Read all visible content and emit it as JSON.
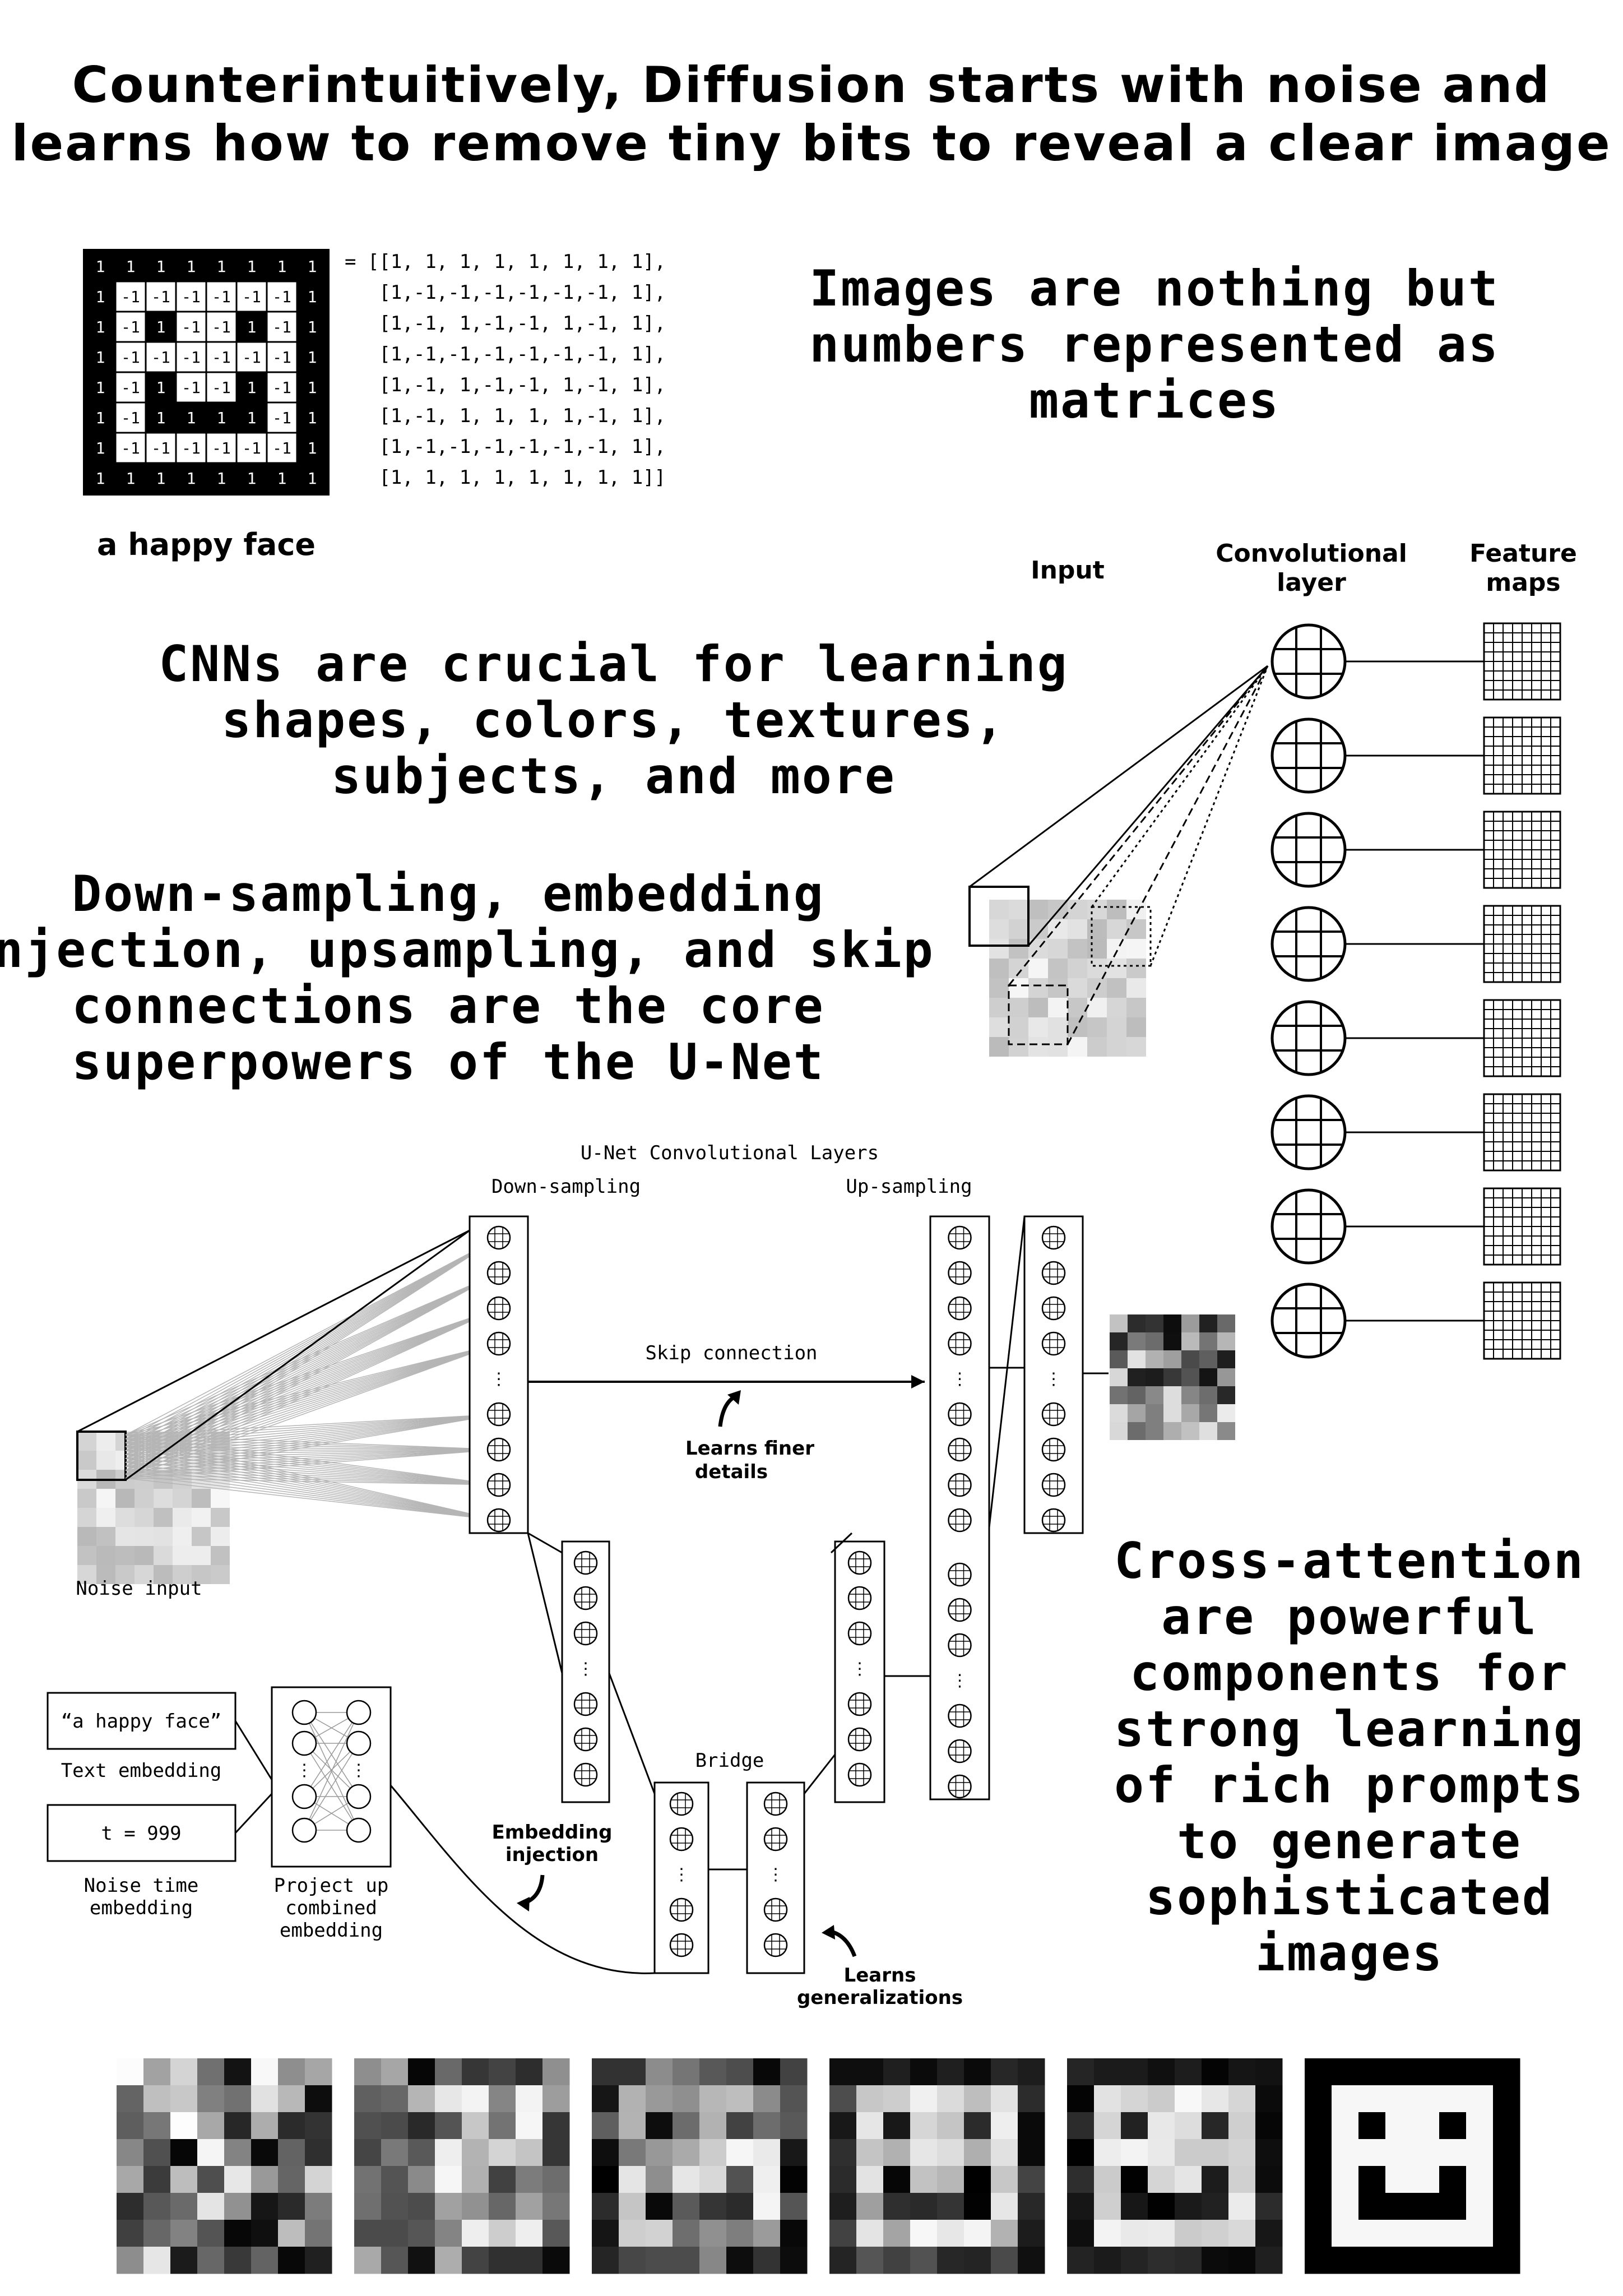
{
  "headline": {
    "line1": "Counterintuitively, Diffusion starts with noise and",
    "line2": "learns how to remove tiny bits to reveal a clear image"
  },
  "happy_face": {
    "caption": "a happy face",
    "matrix": [
      [
        1,
        1,
        1,
        1,
        1,
        1,
        1,
        1
      ],
      [
        1,
        -1,
        -1,
        -1,
        -1,
        -1,
        -1,
        1
      ],
      [
        1,
        -1,
        1,
        -1,
        -1,
        1,
        -1,
        1
      ],
      [
        1,
        -1,
        -1,
        -1,
        -1,
        -1,
        -1,
        1
      ],
      [
        1,
        -1,
        1,
        -1,
        -1,
        1,
        -1,
        1
      ],
      [
        1,
        -1,
        1,
        1,
        1,
        1,
        -1,
        1
      ],
      [
        1,
        -1,
        -1,
        -1,
        -1,
        -1,
        -1,
        1
      ],
      [
        1,
        1,
        1,
        1,
        1,
        1,
        1,
        1
      ]
    ],
    "matrix_text": [
      "= [[1, 1, 1, 1, 1, 1, 1, 1],",
      "   [1,-1,-1,-1,-1,-1,-1, 1],",
      "   [1,-1, 1,-1,-1, 1,-1, 1],",
      "   [1,-1,-1,-1,-1,-1,-1, 1],",
      "   [1,-1, 1,-1,-1, 1,-1, 1],",
      "   [1,-1, 1, 1, 1, 1,-1, 1],",
      "   [1,-1,-1,-1,-1,-1,-1, 1],",
      "   [1, 1, 1, 1, 1, 1, 1, 1]]"
    ]
  },
  "statements": {
    "images_as_numbers": [
      "Images are nothing but",
      "numbers represented as",
      "matrices"
    ],
    "cnns": [
      "CNNs are crucial for learning",
      "shapes, colors, textures,",
      "subjects, and more"
    ],
    "unet": [
      "Down-sampling, embedding",
      "injection, upsampling, and skip",
      "connections are the core",
      "superpowers of the U-Net"
    ],
    "cross_attention": [
      "Cross-attention",
      "are powerful",
      "components for",
      "strong learning",
      "of rich prompts",
      "to generate",
      "sophisticated",
      "images"
    ]
  },
  "cnn_diagram": {
    "input_label": "Input",
    "conv_label": [
      "Convolutional",
      "layer"
    ],
    "feature_label": [
      "Feature",
      "maps"
    ]
  },
  "unet_diagram": {
    "title": "U-Net Convolutional Layers",
    "down_label": "Down-sampling",
    "up_label": "Up-sampling",
    "skip_label": "Skip connection",
    "finer_label": [
      "Learns finer",
      "details"
    ],
    "noise_label": "Noise input",
    "prompt_text": "“a happy face”",
    "text_embedding_label": "Text embedding",
    "timestep_text": "t = 999",
    "noise_time_label": [
      "Noise time",
      "embedding"
    ],
    "project_label": [
      "Project up",
      "combined",
      "embedding"
    ],
    "bridge_label": "Bridge",
    "embedding_injection_label": [
      "Embedding",
      "injection"
    ],
    "generalizations_label": [
      "Learns",
      "generalizations"
    ],
    "ellipsis": "⋮"
  },
  "denoise_strip": {
    "frame_count": 6
  },
  "colors": {
    "ink": "#000000",
    "paper": "#ffffff",
    "rule": "#9a9a9a"
  }
}
